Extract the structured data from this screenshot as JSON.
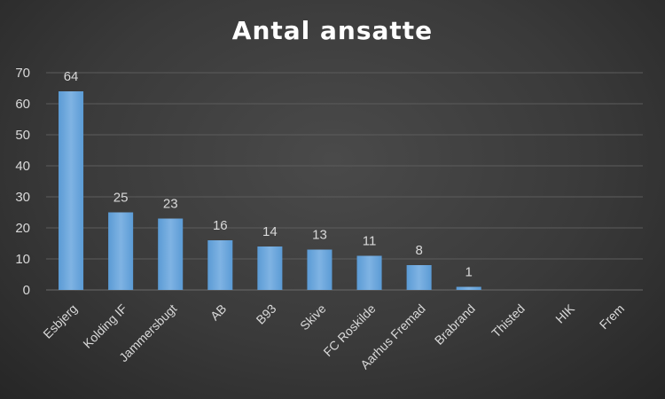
{
  "chart_data": {
    "type": "bar",
    "title": "Antal ansatte",
    "categories": [
      "Esbjerg",
      "Kolding IF",
      "Jammersbugt",
      "AB",
      "B93",
      "Skive",
      "FC Roskilde",
      "Aarhus Fremad",
      "Brabrand",
      "Thisted",
      "HIK",
      "Frem"
    ],
    "values": [
      64,
      25,
      23,
      16,
      14,
      13,
      11,
      8,
      1,
      null,
      null,
      null
    ],
    "data_labels": [
      "64",
      "25",
      "23",
      "16",
      "14",
      "13",
      "11",
      "8",
      "1",
      "",
      "",
      ""
    ],
    "ylim": [
      0,
      70
    ],
    "yticks": [
      0,
      10,
      20,
      30,
      40,
      50,
      60,
      70
    ],
    "grid": true,
    "bar_color": "#5b9bd5",
    "bar_color_light": "#7fb3e3",
    "background_color": "#404040"
  }
}
